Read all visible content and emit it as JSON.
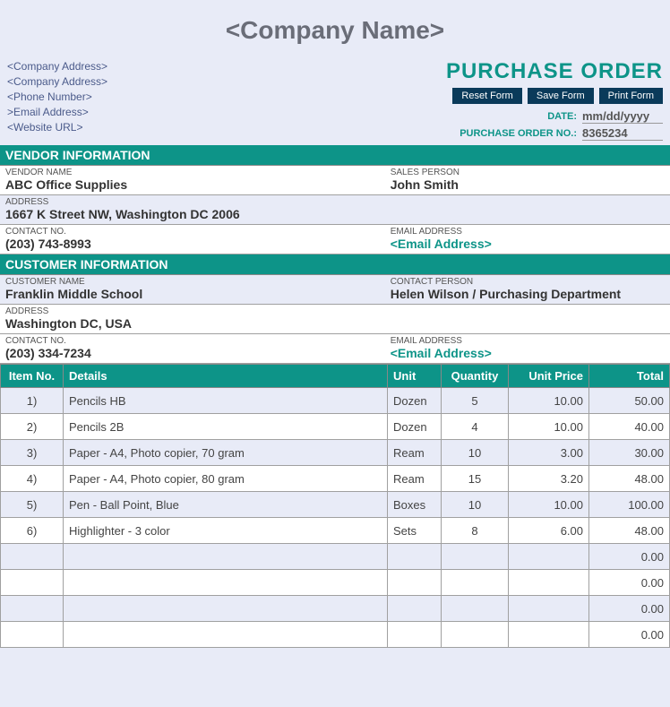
{
  "colors": {
    "teal": "#0d9488",
    "navy": "#0a3a5a",
    "lavender": "#e8ebf7",
    "gray_text": "#6a6d78",
    "border": "#a0a0a0"
  },
  "header": {
    "company_name": "<Company Name>",
    "company_lines": [
      "<Company Address>",
      "<Company Address>",
      "<Phone Number>",
      ">Email Address>",
      "<Website URL>"
    ],
    "po_title": "PURCHASE ORDER",
    "buttons": {
      "reset": "Reset Form",
      "save": "Save Form",
      "print": "Print Form"
    },
    "date_label": "DATE:",
    "date_value": "mm/dd/yyyy",
    "pono_label": "PURCHASE ORDER NO.:",
    "pono_value": "8365234"
  },
  "vendor": {
    "section": "VENDOR INFORMATION",
    "name_label": "VENDOR NAME",
    "name": "ABC Office Supplies",
    "sales_label": "SALES PERSON",
    "sales": "John Smith",
    "address_label": "ADDRESS",
    "address": "1667 K Street NW, Washington DC   2006",
    "contact_label": "CONTACT NO.",
    "contact": "(203) 743-8993",
    "email_label": "EMAIL ADDRESS",
    "email": "<Email Address>"
  },
  "customer": {
    "section": "CUSTOMER INFORMATION",
    "name_label": "CUSTOMER NAME",
    "name": "Franklin Middle School",
    "person_label": "CONTACT PERSON",
    "person": "Helen Wilson / Purchasing Department",
    "address_label": "ADDRESS",
    "address": "Washington DC, USA",
    "contact_label": "CONTACT NO.",
    "contact": "(203) 334-7234",
    "email_label": "EMAIL ADDRESS",
    "email": "<Email Address>"
  },
  "table": {
    "headers": {
      "itemno": "Item No.",
      "details": "Details",
      "unit": "Unit",
      "qty": "Quantity",
      "price": "Unit Price",
      "total": "Total"
    },
    "rows": [
      {
        "no": "1)",
        "details": "Pencils HB",
        "unit": "Dozen",
        "qty": "5",
        "price": "10.00",
        "total": "50.00"
      },
      {
        "no": "2)",
        "details": "Pencils 2B",
        "unit": "Dozen",
        "qty": "4",
        "price": "10.00",
        "total": "40.00"
      },
      {
        "no": "3)",
        "details": "Paper - A4, Photo copier, 70 gram",
        "unit": "Ream",
        "qty": "10",
        "price": "3.00",
        "total": "30.00"
      },
      {
        "no": "4)",
        "details": "Paper - A4, Photo copier, 80 gram",
        "unit": "Ream",
        "qty": "15",
        "price": "3.20",
        "total": "48.00"
      },
      {
        "no": "5)",
        "details": "Pen - Ball Point, Blue",
        "unit": "Boxes",
        "qty": "10",
        "price": "10.00",
        "total": "100.00"
      },
      {
        "no": "6)",
        "details": "Highlighter - 3 color",
        "unit": "Sets",
        "qty": "8",
        "price": "6.00",
        "total": "48.00"
      },
      {
        "no": "",
        "details": "",
        "unit": "",
        "qty": "",
        "price": "",
        "total": "0.00"
      },
      {
        "no": "",
        "details": "",
        "unit": "",
        "qty": "",
        "price": "",
        "total": "0.00"
      },
      {
        "no": "",
        "details": "",
        "unit": "",
        "qty": "",
        "price": "",
        "total": "0.00"
      },
      {
        "no": "",
        "details": "",
        "unit": "",
        "qty": "",
        "price": "",
        "total": "0.00"
      }
    ]
  }
}
